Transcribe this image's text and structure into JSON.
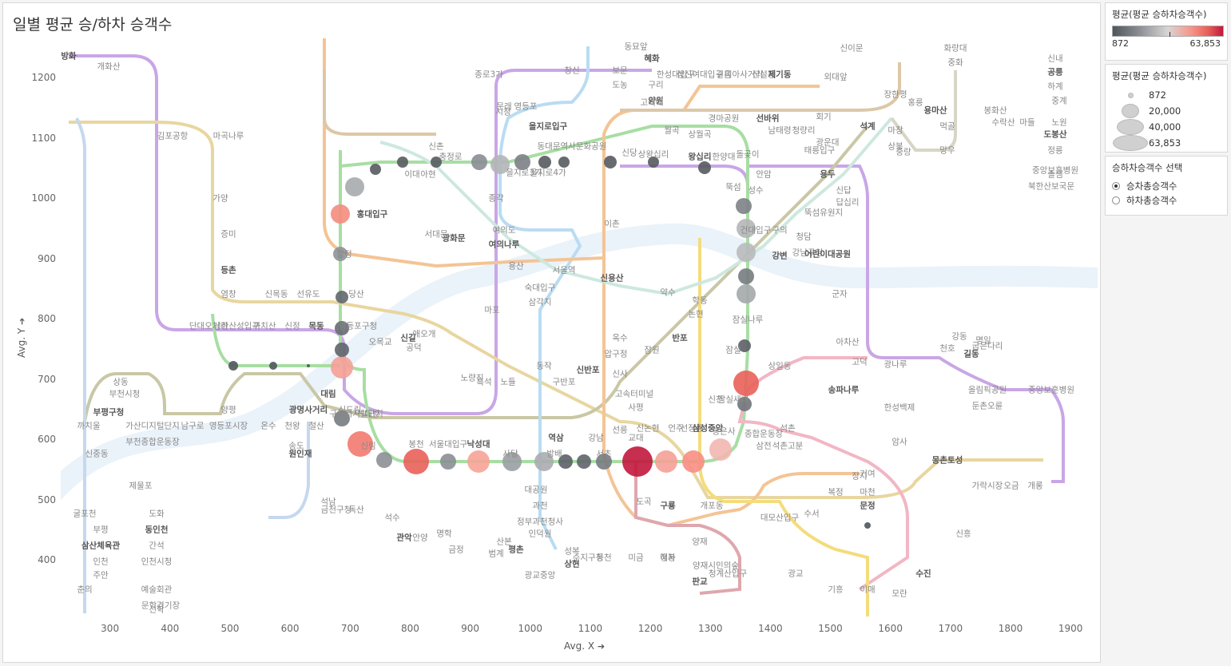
{
  "title": "일별 평균 승/하차 승객수",
  "axes": {
    "x_title": "Avg. X",
    "y_title": "Avg. Y",
    "pin_icon": "pin-icon",
    "x_ticks": [
      "300",
      "400",
      "500",
      "600",
      "700",
      "800",
      "900",
      "1000",
      "1100",
      "1200",
      "1300",
      "1400",
      "1500",
      "1600",
      "1700",
      "1800",
      "1900"
    ],
    "y_ticks": [
      "400",
      "500",
      "600",
      "700",
      "800",
      "900",
      "1000",
      "1100",
      "1200"
    ]
  },
  "legend_color": {
    "title": "평균(평균 승하차승객수)",
    "min_label": "872",
    "max_label": "63,853",
    "colors": [
      "#50555c",
      "#8d9196",
      "#d8d6d4",
      "#f79286",
      "#e9615a",
      "#c2173c"
    ]
  },
  "legend_size": {
    "title": "평균(평균 승하차승객수)",
    "items": [
      "872",
      "20,000",
      "40,000",
      "63,853"
    ]
  },
  "filter": {
    "title": "승하차승객수 선택",
    "options": [
      {
        "label": "승차총승객수",
        "selected": true
      },
      {
        "label": "하차총승객수",
        "selected": false
      }
    ]
  },
  "map_labels": [
    "방화",
    "개화산",
    "김포공항",
    "마곡나루",
    "가양",
    "증미",
    "등촌",
    "염창",
    "신목동",
    "선유도",
    "당산",
    "영등포구청",
    "신길",
    "노량진",
    "동작",
    "흑석",
    "노들",
    "구반포",
    "신반포",
    "고속터미널",
    "사평",
    "신논현",
    "언주",
    "선정릉",
    "삼성중앙",
    "봉은사",
    "종합운동장",
    "삼전",
    "석촌고분",
    "석촌",
    "송파나루",
    "한성백제",
    "올림픽공원",
    "둔촌오륜",
    "중앙보훈병원",
    "합정",
    "홍대입구",
    "신촌",
    "이대",
    "아현",
    "충정로",
    "시청",
    "을지로입구",
    "을지로3가",
    "을지로4가",
    "동대문역사문화공원",
    "신당",
    "상왕십리",
    "왕십리",
    "한양대",
    "뚝섬",
    "성수",
    "건대입구",
    "구의",
    "강변",
    "잠실나루",
    "잠실",
    "잠실새내",
    "신천",
    "선릉",
    "역삼",
    "강남",
    "교대",
    "서초",
    "방배",
    "사당",
    "낙성대",
    "서울대입구",
    "봉천",
    "신림",
    "신대방",
    "구로디지털단지",
    "대림",
    "신도림",
    "문래",
    "영등포",
    "종로3가",
    "종각",
    "광화문",
    "서대문",
    "애오개",
    "공덕",
    "마포",
    "여의도",
    "여의나루",
    "용산",
    "서울역",
    "숙대입구",
    "삼각지",
    "이촌",
    "신용산",
    "약수",
    "옥수",
    "압구정",
    "신사",
    "잠원",
    "반포",
    "논현",
    "학동",
    "청담",
    "강남구청",
    "뚝섬유원지",
    "어린이대공원",
    "군자",
    "아차산",
    "광나루",
    "천호",
    "강동",
    "길동",
    "굽은다리",
    "명일",
    "고덕",
    "상일동",
    "암사",
    "몽촌토성",
    "가락시장",
    "오금",
    "개롱",
    "거여",
    "마천",
    "문정",
    "장지",
    "복정",
    "수서",
    "대모산입구",
    "개포동",
    "구룡",
    "도곡",
    "매봉",
    "양재",
    "양재시민의숲",
    "청계산입구",
    "판교",
    "정자",
    "미금",
    "동천",
    "수지구청",
    "성복",
    "상현",
    "광교중앙",
    "광교",
    "기흥",
    "이매",
    "모란",
    "수진",
    "신흥",
    "단대오거리",
    "남한산성입구",
    "까치산",
    "신정",
    "목동",
    "오목교",
    "양평",
    "영등포시장",
    "온수",
    "천왕",
    "광명사거리",
    "철산",
    "가산디지털단지",
    "남구로",
    "부천종합운동장",
    "까치울",
    "부평구청",
    "상동",
    "부천시청",
    "신중동",
    "춘의",
    "굴포천",
    "삼산체육관",
    "부평",
    "인천",
    "주안",
    "제물포",
    "도화",
    "동인천",
    "간석",
    "인천시청",
    "예술회관",
    "문학경기장",
    "선학",
    "원인재",
    "송도",
    "석남",
    "금천구청",
    "독산",
    "석수",
    "관악",
    "안양",
    "명학",
    "금정",
    "산본",
    "범계",
    "평촌",
    "인덕원",
    "정부과천청사",
    "과천",
    "대공원",
    "경마공원",
    "선바위",
    "남태령",
    "청량리",
    "회기",
    "외대앞",
    "신이문",
    "석계",
    "태릉입구",
    "광운대",
    "상봉",
    "중랑",
    "망우",
    "양원",
    "구리",
    "도농",
    "보문",
    "창신",
    "동묘앞",
    "혜화",
    "한성대입구",
    "성신여대입구",
    "길음",
    "미아사거리",
    "신설동",
    "제기동",
    "고려대",
    "월곡",
    "상월곡",
    "돌곶이",
    "안암",
    "용두",
    "신답",
    "답십리",
    "마장",
    "장한평",
    "홍릉",
    "용마산",
    "먹골",
    "중화",
    "화랑대",
    "봉화산",
    "신내",
    "공릉",
    "하계",
    "중계",
    "노원",
    "마들",
    "수락산",
    "도봉산",
    "정릉",
    "솔샘",
    "북한산보국문",
    "중앙보훈병원"
  ]
}
